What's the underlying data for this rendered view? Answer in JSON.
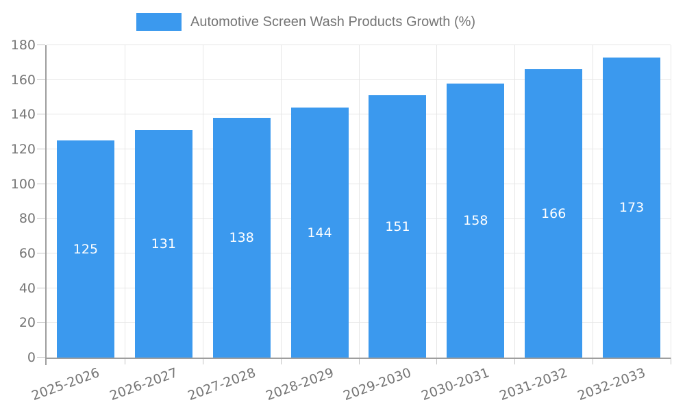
{
  "legend": {
    "label": "Automotive Screen Wash Products Growth (%)"
  },
  "chart_data": {
    "type": "bar",
    "title": "Automotive Screen Wash Products Growth (%)",
    "categories": [
      "2025-2026",
      "2026-2027",
      "2027-2028",
      "2028-2029",
      "2029-2030",
      "2030-2031",
      "2031-2032",
      "2032-2033"
    ],
    "values": [
      125,
      131,
      138,
      144,
      151,
      158,
      166,
      173
    ],
    "xlabel": "",
    "ylabel": "",
    "ylim": [
      0,
      180
    ],
    "yticks": [
      0,
      20,
      40,
      60,
      80,
      100,
      120,
      140,
      160,
      180
    ],
    "grid": true,
    "legend_position": "top",
    "x_label_rotation_deg": -20,
    "colors": {
      "bar": "#3B99EE",
      "value_label": "#ffffff",
      "axis_text": "#757575",
      "axis_line": "#9e9e9e",
      "gridline": "#e6e6e6",
      "tick": "#c2c2c2"
    }
  }
}
